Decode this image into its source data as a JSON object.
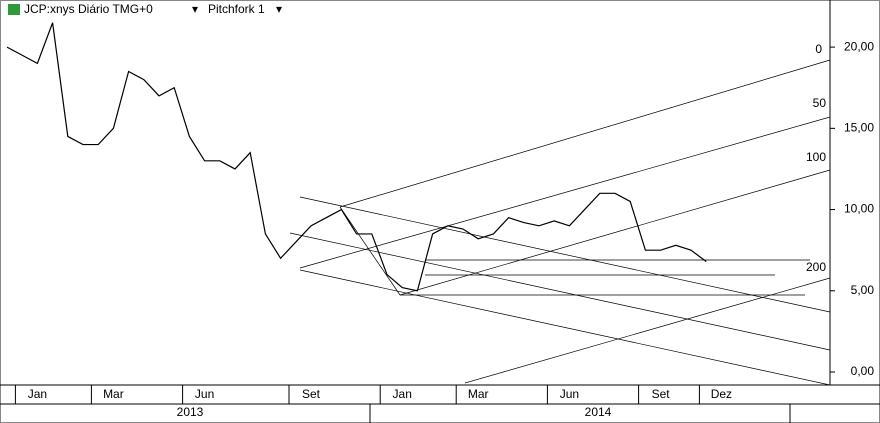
{
  "header": {
    "symbol": "JCP:xnys Diário TMG+0",
    "study": "Pitchfork 1"
  },
  "chart_data": {
    "type": "line",
    "categories": [
      null,
      null,
      "Jan",
      null,
      null,
      null,
      null,
      "Mar",
      null,
      null,
      null,
      null,
      null,
      "Jun",
      null,
      null,
      null,
      null,
      null,
      null,
      "Set",
      null,
      null,
      null,
      null,
      null,
      "Jan",
      null,
      null,
      null,
      null,
      "Mar",
      null,
      null,
      null,
      null,
      null,
      "Jun",
      null,
      null,
      null,
      null,
      null,
      "Set",
      null,
      null,
      null,
      "Dez"
    ],
    "series": [
      {
        "name": "JCP",
        "color": "#000000",
        "values": [
          20,
          19.5,
          19,
          21.5,
          14.5,
          14,
          14,
          15,
          18.5,
          18,
          17,
          17.5,
          14.5,
          13,
          13,
          12.5,
          13.5,
          8.5,
          7,
          8,
          9,
          9.5,
          10,
          8.5,
          8.5,
          6,
          5.2,
          5,
          8.5,
          9,
          8.8,
          8.2,
          8.5,
          9.5,
          9.2,
          9,
          9.3,
          9,
          10,
          11,
          11,
          10.5,
          7.5,
          7.5,
          7.8,
          7.5,
          6.8,
          null
        ]
      }
    ],
    "years": [
      "2013",
      "2014"
    ],
    "ylim": [
      -0.8,
      22.9
    ],
    "yticks": [
      {
        "value": 0,
        "label": "0,00"
      },
      {
        "value": 5,
        "label": "5,00"
      },
      {
        "value": 10,
        "label": "10,00"
      },
      {
        "value": 15,
        "label": "15,00"
      },
      {
        "value": 20,
        "label": "20,00"
      }
    ],
    "annotations": [
      "0",
      "50",
      "100",
      "200"
    ]
  }
}
